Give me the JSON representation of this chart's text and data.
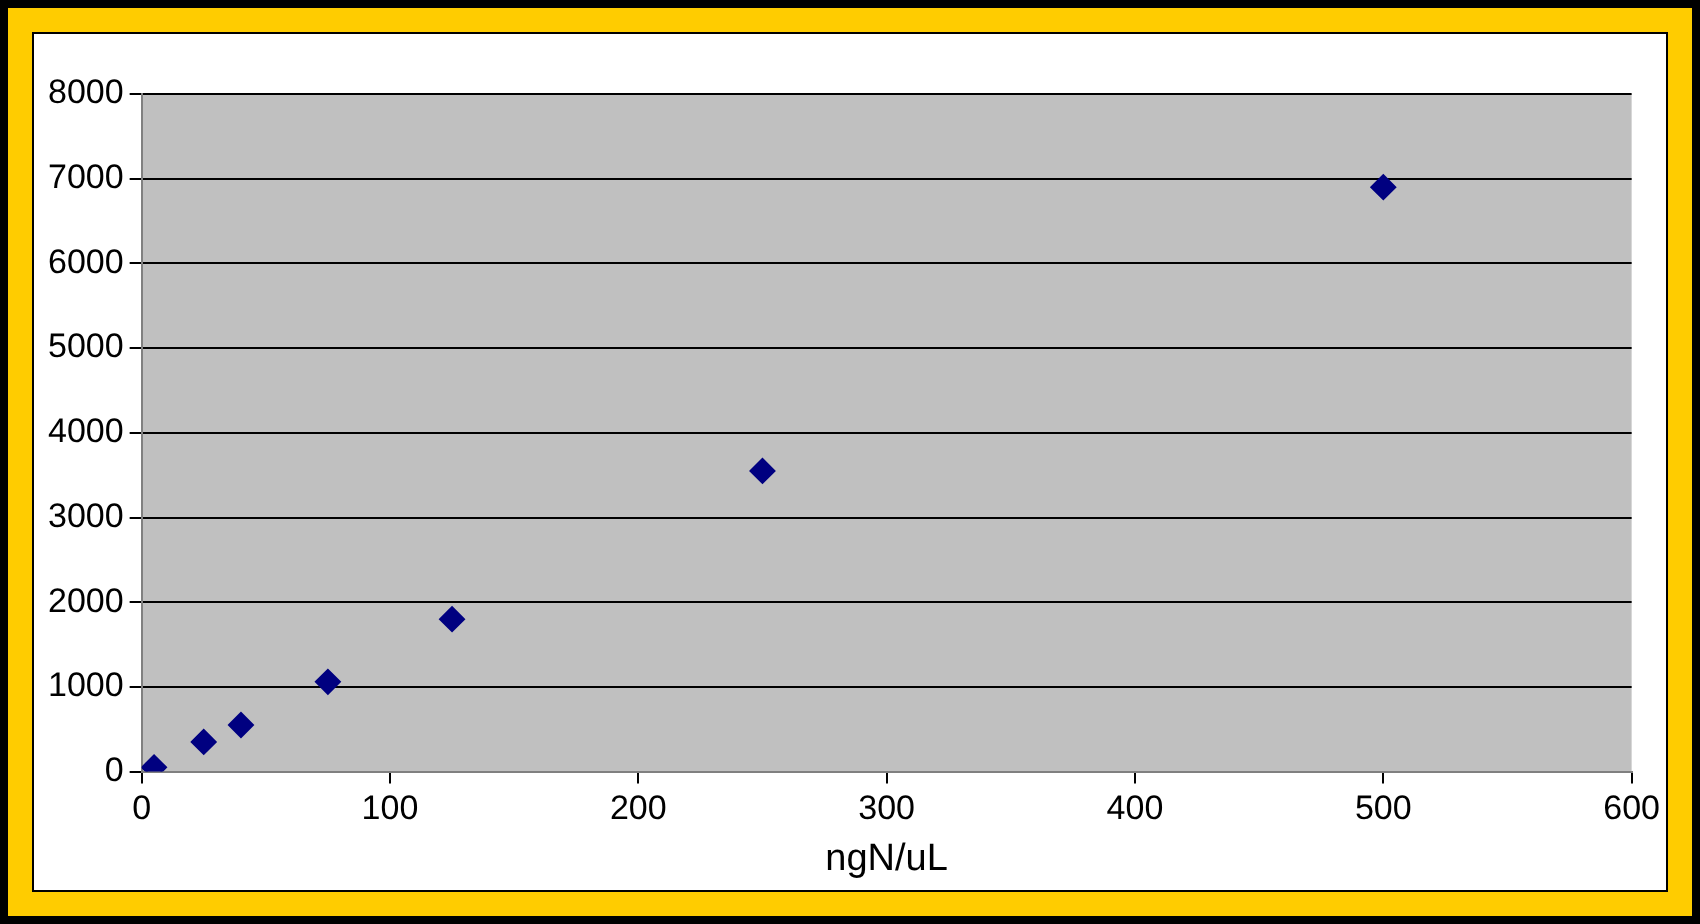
{
  "chart_data": {
    "type": "scatter",
    "xlabel": "ngN/uL",
    "x": [
      5,
      25,
      40,
      75,
      125,
      250,
      500
    ],
    "series": [
      {
        "color": "#000080",
        "values": [
          50,
          350,
          550,
          1060,
          1800,
          3550,
          6900
        ]
      }
    ],
    "xlim": [
      0,
      600
    ],
    "xticks": [
      0,
      100,
      200,
      300,
      400,
      500,
      600
    ],
    "ylim": [
      0,
      8000
    ],
    "yticks": [
      0,
      1000,
      2000,
      3000,
      4000,
      5000,
      6000,
      7000,
      8000
    ],
    "grid": "y",
    "marker": "diamond",
    "legend": false
  }
}
